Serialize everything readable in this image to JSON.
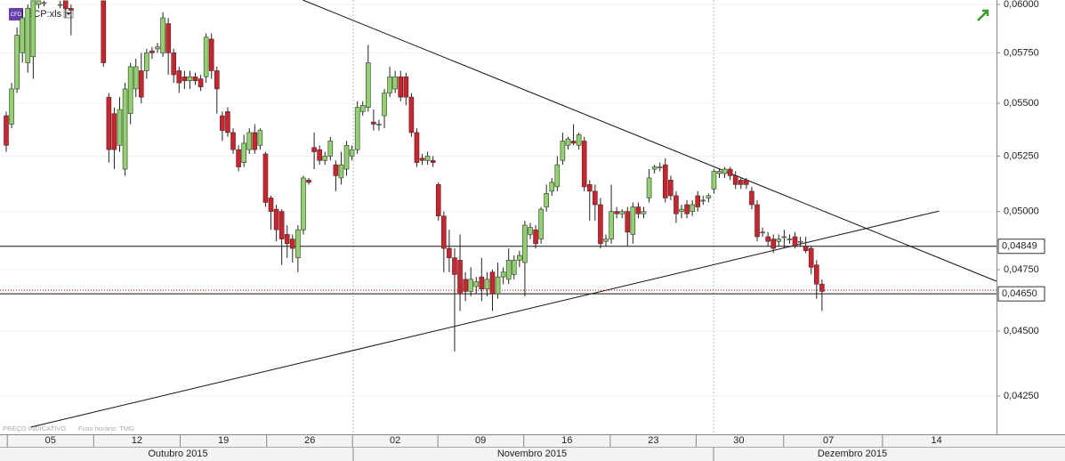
{
  "chart_data": {
    "type": "candlestick",
    "symbol": "BCP:xls",
    "badge": "CFD",
    "note": "PREÇO INDICATIVO",
    "timezone": "Fuso horário: TMG",
    "log_scale": true,
    "grid": true,
    "up_color": "#8fd36a",
    "down_color": "#d3202a",
    "xlim": [
      -1.15,
      183.3
    ],
    "ylim": [
      0.04112,
      0.06024
    ],
    "xticks": [
      {
        "value": 8.2,
        "label": "05"
      },
      {
        "value": 24.2,
        "label": "12"
      },
      {
        "value": 40.2,
        "label": "19"
      },
      {
        "value": 56.2,
        "label": "26"
      },
      {
        "value": 72,
        "label": "02"
      },
      {
        "value": 87.8,
        "label": "09"
      },
      {
        "value": 103.8,
        "label": "16"
      },
      {
        "value": 119.8,
        "label": "23"
      },
      {
        "value": 135.6,
        "label": "30"
      },
      {
        "value": 152.2,
        "label": "07"
      },
      {
        "value": 172.2,
        "label": "14"
      }
    ],
    "months": [
      "Outubro 2015",
      "Novembro 2015",
      "Dezembro 2015"
    ],
    "yticks": [
      {
        "value": 0.06,
        "label": "0,06000"
      },
      {
        "value": 0.0575,
        "label": "0,05750"
      },
      {
        "value": 0.055,
        "label": "0,05500"
      },
      {
        "value": 0.0525,
        "label": "0,05250"
      },
      {
        "value": 0.05,
        "label": "0,05000"
      },
      {
        "value": 0.0475,
        "label": "0,04750"
      },
      {
        "value": 0.045,
        "label": "0,04500"
      },
      {
        "value": 0.0425,
        "label": "0,04250"
      }
    ],
    "levels": [
      {
        "value": 0.04849,
        "label": "0,04849"
      },
      {
        "value": 0.0465,
        "label": "0,04650"
      }
    ],
    "last_price": 0.04665,
    "trendlines": [
      {
        "x": [
          54.9,
          183.3
        ],
        "y": [
          0.06024,
          0.04702
        ]
      },
      {
        "x": [
          4.6,
          172.7
        ],
        "y": [
          0.04135,
          0.05002
        ]
      }
    ],
    "x": [
      0,
      1,
      2,
      3,
      4,
      5,
      6,
      7,
      10,
      11,
      12,
      18,
      19,
      20,
      21,
      22,
      23,
      24,
      25,
      26,
      27,
      28,
      29,
      30,
      31,
      32,
      33,
      34,
      35,
      36,
      37,
      38,
      39,
      40,
      41,
      42,
      43,
      44,
      45,
      46,
      47,
      48,
      49,
      50,
      51,
      52,
      53,
      54,
      55,
      56,
      57,
      58,
      59,
      60,
      61,
      62,
      63,
      64,
      65,
      66,
      67,
      68,
      69,
      70,
      71,
      72,
      73,
      74,
      75,
      76,
      77,
      78,
      79,
      80,
      81,
      82,
      83,
      84,
      85,
      86,
      87,
      88,
      89,
      90,
      91,
      92,
      93,
      94,
      95,
      96,
      97,
      98,
      99,
      100,
      101,
      102,
      103,
      104,
      105,
      106,
      107,
      108,
      109,
      110,
      111,
      112,
      113,
      114,
      115,
      116,
      117,
      118,
      119,
      120,
      121,
      122,
      123,
      124,
      125,
      126,
      127,
      128,
      129,
      130,
      131,
      132,
      133,
      134,
      135,
      136,
      137,
      138,
      139,
      140,
      141,
      142,
      143,
      144,
      145,
      146,
      147,
      148,
      149,
      150,
      151
    ],
    "open": [
      0.0544,
      0.054,
      0.0557,
      0.0575,
      0.057,
      0.0573,
      0.06,
      0.0601,
      0.06,
      0.0602,
      0.0598,
      0.0602,
      0.0553,
      0.0545,
      0.053,
      0.0519,
      0.0545,
      0.0557,
      0.0566,
      0.0566,
      0.0576,
      0.0577,
      0.0575,
      0.059,
      0.0575,
      0.0566,
      0.0563,
      0.0561,
      0.0563,
      0.0562,
      0.0563,
      0.0582,
      0.0566,
      0.0544,
      0.0546,
      0.0536,
      0.0528,
      0.0522,
      0.0528,
      0.0536,
      0.053,
      0.0526,
      0.0506,
      0.0501,
      0.05,
      0.049,
      0.0488,
      0.048,
      0.0492,
      0.0514,
      0.0529,
      0.0528,
      0.0523,
      0.0525,
      0.0521,
      0.0515,
      0.0519,
      0.0525,
      0.0528,
      0.0546,
      0.0548,
      0.0541,
      0.054,
      0.0544,
      0.0555,
      0.0557,
      0.0563,
      0.0563,
      0.0553,
      0.0536,
      0.0524,
      0.0523,
      0.0523,
      0.0512,
      0.0498,
      0.0484,
      0.048,
      0.0479,
      0.0471,
      0.0466,
      0.0468,
      0.0472,
      0.0467,
      0.0474,
      0.0465,
      0.0472,
      0.0471,
      0.0473,
      0.0479,
      0.0478,
      0.049,
      0.0492,
      0.0488,
      0.0502,
      0.0509,
      0.0511,
      0.0523,
      0.053,
      0.0532,
      0.053,
      0.0532,
      0.0512,
      0.0509,
      0.0503,
      0.0487,
      0.0488,
      0.05,
      0.0499,
      0.05,
      0.049,
      0.0502,
      0.0499,
      0.0506,
      0.0519,
      0.052,
      0.0521,
      0.0514,
      0.0507,
      0.05,
      0.0503,
      0.05,
      0.0507,
      0.0505,
      0.0506,
      0.051,
      0.0517,
      0.0517,
      0.0519,
      0.0516,
      0.0514,
      0.0514,
      0.0509,
      0.0503,
      0.0491,
      0.0489,
      0.0488,
      0.0487,
      0.0489,
      0.0488,
      0.0489,
      0.0487,
      0.0485,
      0.0484,
      0.0477,
      0.0469
    ],
    "high": [
      0.0546,
      0.056,
      0.0588,
      0.0598,
      0.06,
      0.0602,
      0.0602,
      0.0602,
      0.0602,
      0.0602,
      0.06,
      0.0602,
      0.0555,
      0.0548,
      0.0553,
      0.056,
      0.057,
      0.0572,
      0.0575,
      0.0577,
      0.0578,
      0.058,
      0.0596,
      0.0593,
      0.0577,
      0.0568,
      0.0566,
      0.0566,
      0.0565,
      0.0564,
      0.0585,
      0.0585,
      0.0568,
      0.0546,
      0.0548,
      0.0538,
      0.053,
      0.0535,
      0.0538,
      0.054,
      0.0538,
      0.0527,
      0.0507,
      0.0503,
      0.0501,
      0.0494,
      0.049,
      0.0494,
      0.0516,
      0.0515,
      0.0536,
      0.053,
      0.0527,
      0.0534,
      0.0523,
      0.0527,
      0.0532,
      0.053,
      0.0551,
      0.0551,
      0.0579,
      0.0547,
      0.0542,
      0.0557,
      0.0568,
      0.0566,
      0.0566,
      0.0565,
      0.0555,
      0.0538,
      0.0526,
      0.0527,
      0.0525,
      0.0513,
      0.05,
      0.0492,
      0.0484,
      0.049,
      0.0474,
      0.0476,
      0.0472,
      0.048,
      0.0474,
      0.0475,
      0.0478,
      0.0476,
      0.0484,
      0.0481,
      0.0483,
      0.0496,
      0.0495,
      0.0494,
      0.0502,
      0.0512,
      0.0515,
      0.0525,
      0.0536,
      0.0534,
      0.054,
      0.0536,
      0.0534,
      0.0514,
      0.0512,
      0.0506,
      0.049,
      0.0512,
      0.0502,
      0.0501,
      0.0502,
      0.0504,
      0.0504,
      0.0502,
      0.0519,
      0.0521,
      0.0522,
      0.0524,
      0.0516,
      0.0509,
      0.0503,
      0.0505,
      0.0505,
      0.0509,
      0.0507,
      0.0508,
      0.0519,
      0.0519,
      0.052,
      0.052,
      0.0518,
      0.0515,
      0.0515,
      0.0511,
      0.0505,
      0.0493,
      0.0491,
      0.049,
      0.049,
      0.0492,
      0.049,
      0.0491,
      0.0489,
      0.0489,
      0.0485,
      0.0479,
      0.0471
    ],
    "low": [
      0.0527,
      0.0538,
      0.0555,
      0.057,
      0.0565,
      0.0562,
      0.0598,
      0.0599,
      0.0598,
      0.0593,
      0.0584,
      0.0568,
      0.0522,
      0.0519,
      0.0527,
      0.0516,
      0.054,
      0.0553,
      0.055,
      0.0562,
      0.0572,
      0.0575,
      0.0573,
      0.0564,
      0.056,
      0.0555,
      0.0557,
      0.0557,
      0.0559,
      0.0556,
      0.056,
      0.0562,
      0.0545,
      0.0532,
      0.0534,
      0.0526,
      0.0518,
      0.052,
      0.0526,
      0.0526,
      0.0528,
      0.0502,
      0.0492,
      0.0487,
      0.0477,
      0.048,
      0.0478,
      0.0474,
      0.049,
      0.0512,
      0.0519,
      0.0521,
      0.0521,
      0.0523,
      0.0509,
      0.0512,
      0.0516,
      0.0523,
      0.0526,
      0.0544,
      0.0546,
      0.0537,
      0.0537,
      0.0538,
      0.0553,
      0.0555,
      0.0551,
      0.0549,
      0.0534,
      0.052,
      0.0521,
      0.0521,
      0.052,
      0.0496,
      0.0474,
      0.0474,
      0.0442,
      0.0458,
      0.0462,
      0.0464,
      0.0465,
      0.0462,
      0.0464,
      0.0458,
      0.0463,
      0.0469,
      0.0469,
      0.0471,
      0.0476,
      0.0464,
      0.0488,
      0.0484,
      0.0486,
      0.05,
      0.0507,
      0.0509,
      0.0521,
      0.0528,
      0.053,
      0.0528,
      0.0509,
      0.0496,
      0.0496,
      0.0484,
      0.0485,
      0.0486,
      0.0497,
      0.0497,
      0.0485,
      0.0486,
      0.0497,
      0.0497,
      0.0504,
      0.0517,
      0.0518,
      0.0504,
      0.0505,
      0.0495,
      0.0497,
      0.0497,
      0.0498,
      0.05,
      0.0503,
      0.0504,
      0.0508,
      0.0515,
      0.0515,
      0.0514,
      0.051,
      0.051,
      0.051,
      0.0501,
      0.0487,
      0.0489,
      0.0485,
      0.0482,
      0.0485,
      0.0484,
      0.0486,
      0.0484,
      0.0485,
      0.0482,
      0.0473,
      0.0463,
      0.0458
    ],
    "close": [
      0.053,
      0.0557,
      0.0584,
      0.0593,
      0.0598,
      0.0602,
      0.0602,
      0.0601,
      0.06,
      0.0598,
      0.0597,
      0.057,
      0.0528,
      0.0528,
      0.0547,
      0.0557,
      0.0568,
      0.0568,
      0.0553,
      0.0575,
      0.0575,
      0.0578,
      0.0593,
      0.0575,
      0.0564,
      0.056,
      0.0561,
      0.0563,
      0.0561,
      0.0558,
      0.0583,
      0.0566,
      0.0557,
      0.0537,
      0.0536,
      0.0528,
      0.052,
      0.0531,
      0.0536,
      0.0528,
      0.0537,
      0.0504,
      0.05,
      0.0492,
      0.0488,
      0.0486,
      0.0484,
      0.0492,
      0.0515,
      0.0513,
      0.0527,
      0.0523,
      0.0525,
      0.0532,
      0.0516,
      0.0521,
      0.053,
      0.0528,
      0.0548,
      0.0549,
      0.057,
      0.054,
      0.054,
      0.0555,
      0.0563,
      0.0563,
      0.0553,
      0.0553,
      0.0536,
      0.0522,
      0.0523,
      0.0525,
      0.0522,
      0.0498,
      0.0484,
      0.048,
      0.0473,
      0.0465,
      0.0466,
      0.0471,
      0.047,
      0.0467,
      0.0471,
      0.0465,
      0.0472,
      0.0474,
      0.0479,
      0.0479,
      0.0481,
      0.0494,
      0.0493,
      0.0486,
      0.0501,
      0.0508,
      0.0513,
      0.0521,
      0.0532,
      0.0533,
      0.0531,
      0.0535,
      0.0511,
      0.0509,
      0.0503,
      0.0486,
      0.0488,
      0.05,
      0.0499,
      0.05,
      0.0491,
      0.0502,
      0.0499,
      0.05,
      0.0515,
      0.052,
      0.052,
      0.0506,
      0.0507,
      0.0499,
      0.0501,
      0.0499,
      0.0503,
      0.0502,
      0.0505,
      0.0507,
      0.0518,
      0.0518,
      0.0519,
      0.0516,
      0.0512,
      0.0512,
      0.0512,
      0.0503,
      0.0489,
      0.0491,
      0.0487,
      0.0484,
      0.0488,
      0.0489,
      0.0488,
      0.0485,
      0.0487,
      0.0483,
      0.0476,
      0.0469,
      0.0466
    ]
  }
}
